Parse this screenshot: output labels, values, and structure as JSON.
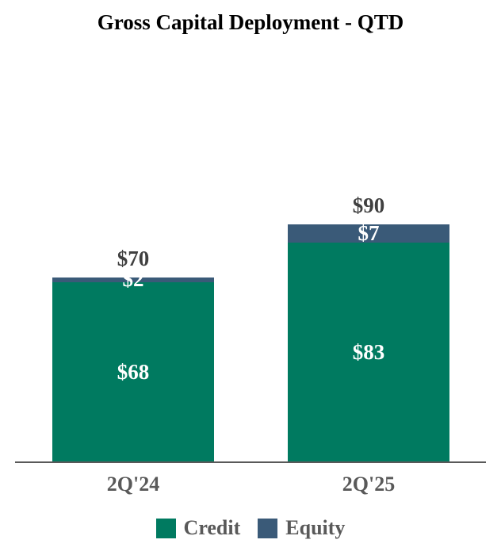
{
  "chart_data": {
    "type": "bar",
    "stacked": true,
    "title": "Gross Capital Deployment - QTD",
    "categories": [
      "2Q'24",
      "2Q'25"
    ],
    "series": [
      {
        "name": "Credit",
        "color": "#007A60",
        "values": [
          68,
          83
        ],
        "labels": [
          "$68",
          "$83"
        ],
        "label_color": "#FFFFFF"
      },
      {
        "name": "Equity",
        "color": "#3A5A78",
        "values": [
          2,
          7
        ],
        "labels": [
          "$2",
          "$7"
        ],
        "label_color": "#FFFFFF"
      }
    ],
    "totals": [
      70,
      90
    ],
    "total_labels": [
      "$70",
      "$90"
    ],
    "total_label_color": "#404040",
    "axis_label_color": "#595959",
    "axis_line_color": "#595959",
    "legend_position": "bottom",
    "legend_text_color": "#595959",
    "grid": false,
    "ylim": [
      0,
      100
    ]
  }
}
